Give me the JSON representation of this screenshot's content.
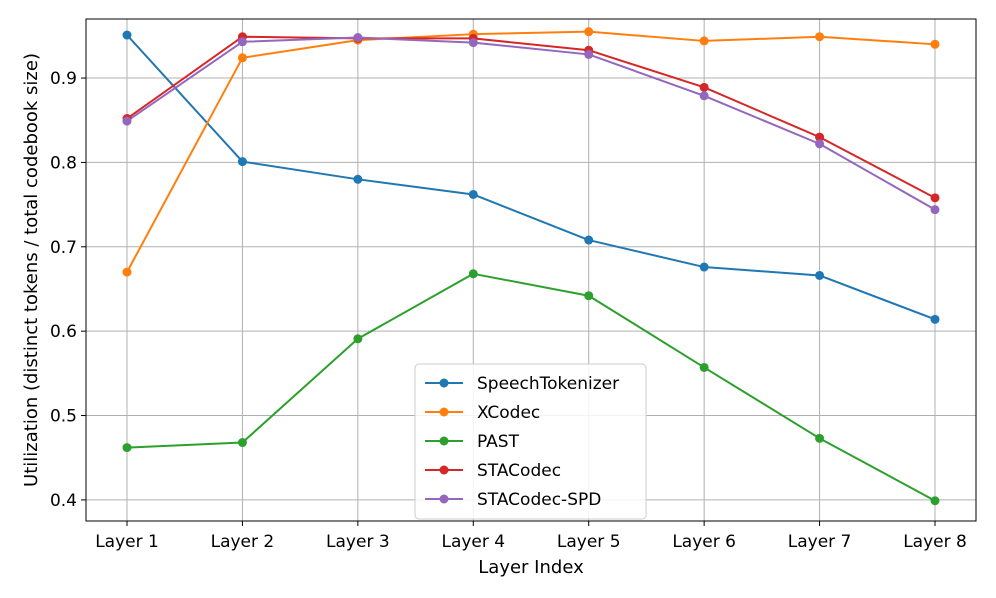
{
  "chart_data": {
    "type": "line",
    "title": "",
    "xlabel": "Layer Index",
    "ylabel": "Utilization (distinct tokens / total codebook size)",
    "categories": [
      "Layer 1",
      "Layer 2",
      "Layer 3",
      "Layer 4",
      "Layer 5",
      "Layer 6",
      "Layer 7",
      "Layer 8"
    ],
    "ylim": [
      0.375,
      0.97
    ],
    "yticks": [
      0.4,
      0.5,
      0.6,
      0.7,
      0.8,
      0.9
    ],
    "ytick_labels": [
      "0.4",
      "0.5",
      "0.6",
      "0.7",
      "0.8",
      "0.9"
    ],
    "grid": true,
    "legend_position": "bottom-center",
    "series": [
      {
        "name": "SpeechTokenizer",
        "color": "#1f77b4",
        "values": [
          0.951,
          0.801,
          0.78,
          0.762,
          0.708,
          0.676,
          0.666,
          0.614
        ]
      },
      {
        "name": "XCodec",
        "color": "#ff7f0e",
        "values": [
          0.67,
          0.924,
          0.945,
          0.952,
          0.955,
          0.944,
          0.949,
          0.94
        ]
      },
      {
        "name": "PAST",
        "color": "#2ca02c",
        "values": [
          0.462,
          0.468,
          0.591,
          0.668,
          0.642,
          0.557,
          0.473,
          0.399
        ]
      },
      {
        "name": "STACodec",
        "color": "#d62728",
        "values": [
          0.852,
          0.949,
          0.947,
          0.947,
          0.933,
          0.889,
          0.83,
          0.758
        ]
      },
      {
        "name": "STACodec-SPD",
        "color": "#9467bd",
        "values": [
          0.849,
          0.943,
          0.948,
          0.942,
          0.928,
          0.879,
          0.822,
          0.744
        ]
      }
    ]
  }
}
